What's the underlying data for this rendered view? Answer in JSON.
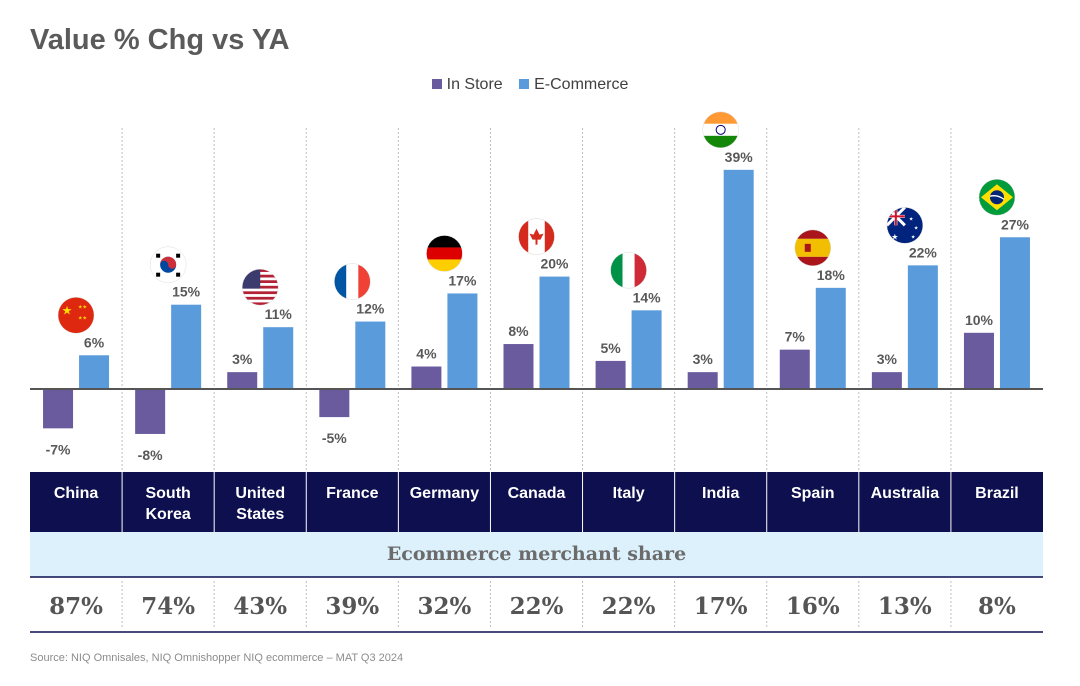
{
  "title": "Value % Chg vs YA",
  "colors": {
    "in_store": "#6a5b9e",
    "e_commerce": "#5a9bdc",
    "header_band": "#0d0f4e",
    "share_band": "#dcf1fb",
    "grid": "#bdbdbd",
    "axis": "#555555"
  },
  "chart_data": {
    "type": "bar",
    "categories": [
      "China",
      "South Korea",
      "United States",
      "France",
      "Germany",
      "Canada",
      "Italy",
      "India",
      "Spain",
      "Australia",
      "Brazil"
    ],
    "category_lines": [
      [
        "China"
      ],
      [
        "South",
        "Korea"
      ],
      [
        "United",
        "States"
      ],
      [
        "France"
      ],
      [
        "Germany"
      ],
      [
        "Canada"
      ],
      [
        "Italy"
      ],
      [
        "India"
      ],
      [
        "Spain"
      ],
      [
        "Australia"
      ],
      [
        "Brazil"
      ]
    ],
    "series": [
      {
        "name": "In Store",
        "values": [
          -7,
          -8,
          3,
          -5,
          4,
          8,
          5,
          3,
          7,
          3,
          10
        ]
      },
      {
        "name": "E-Commerce",
        "values": [
          6,
          15,
          11,
          12,
          17,
          20,
          14,
          39,
          18,
          22,
          27
        ]
      }
    ],
    "label_suffix": "%",
    "flags": [
      "china-flag-icon",
      "south-korea-flag-icon",
      "united-states-flag-icon",
      "france-flag-icon",
      "germany-flag-icon",
      "canada-flag-icon",
      "italy-flag-icon",
      "india-flag-icon",
      "spain-flag-icon",
      "australia-flag-icon",
      "brazil-flag-icon"
    ],
    "ylim": [
      -10,
      40
    ],
    "grid": "vertical dotted separators between countries",
    "legend_position": "top-center"
  },
  "share_table": {
    "header": "Ecommerce merchant share",
    "values": [
      "87%",
      "74%",
      "43%",
      "39%",
      "32%",
      "22%",
      "22%",
      "17%",
      "16%",
      "13%",
      "8%"
    ]
  },
  "source": "Source: NIQ Omnisales, NIQ Omnishopper NIQ ecommerce – MAT Q3 2024"
}
